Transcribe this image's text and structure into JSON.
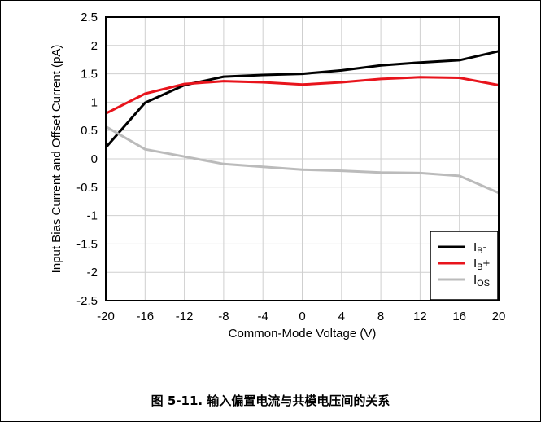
{
  "caption": "图 5-11. 输入偏置电流与共模电压间的关系",
  "chart_data": {
    "type": "line",
    "xlabel": "Common-Mode Voltage (V)",
    "ylabel": "Input Bias Current and Offset Current (pA)",
    "xlim": [
      -20,
      20
    ],
    "ylim": [
      -2.5,
      2.5
    ],
    "xticks": [
      "-20",
      "-16",
      "-12",
      "-8",
      "-4",
      "0",
      "4",
      "8",
      "12",
      "16",
      "20"
    ],
    "yticks": [
      "2.5",
      "2",
      "1.5",
      "1",
      "0.5",
      "0",
      "-0.5",
      "-1",
      "-1.5",
      "-2",
      "-2.5"
    ],
    "grid": true,
    "legend_position": "bottom-right",
    "x": [
      -20,
      -16,
      -12,
      -8,
      -4,
      0,
      4,
      8,
      12,
      16,
      20
    ],
    "series": [
      {
        "name": "IB-",
        "name_main": "I",
        "name_sub": "B",
        "name_suffix": "-",
        "color": "#000000",
        "values": [
          0.2,
          0.99,
          1.3,
          1.45,
          1.48,
          1.5,
          1.56,
          1.65,
          1.7,
          1.74,
          1.9
        ]
      },
      {
        "name": "IB+",
        "name_main": "I",
        "name_sub": "B",
        "name_suffix": "+",
        "color": "#e8141c",
        "values": [
          0.8,
          1.15,
          1.32,
          1.37,
          1.35,
          1.31,
          1.35,
          1.41,
          1.44,
          1.43,
          1.3
        ]
      },
      {
        "name": "IOS",
        "name_main": "I",
        "name_sub": "OS",
        "name_suffix": "",
        "color": "#bbbbbb",
        "values": [
          0.57,
          0.17,
          0.04,
          -0.09,
          -0.14,
          -0.19,
          -0.21,
          -0.24,
          -0.25,
          -0.3,
          -0.6
        ]
      }
    ]
  }
}
